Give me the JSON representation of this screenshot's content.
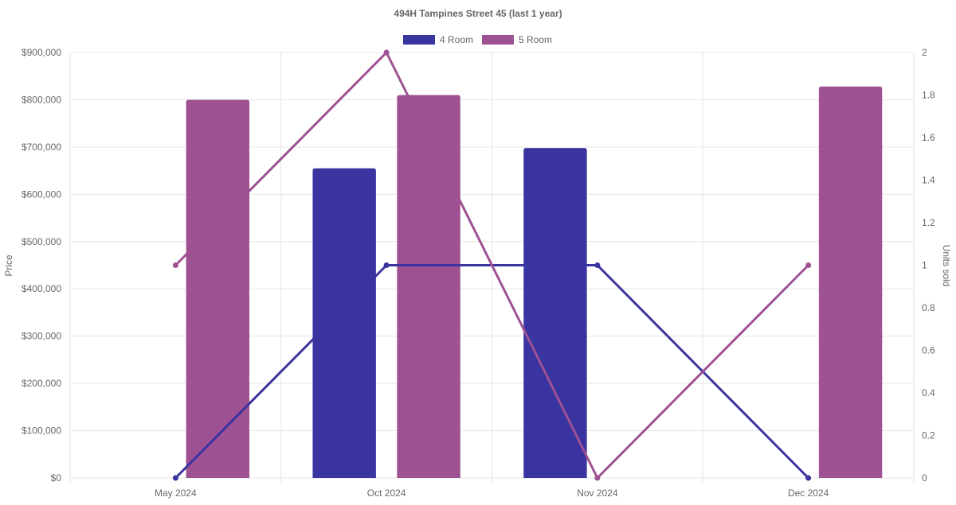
{
  "chart_data": {
    "type": "bar",
    "title": "494H Tampines Street 45 (last 1 year)",
    "categories": [
      "May 2024",
      "Oct 2024",
      "Nov 2024",
      "Dec 2024"
    ],
    "ylabel": "Price",
    "y2label": "Units sold",
    "ylim": [
      0,
      900000
    ],
    "y2lim": [
      0,
      2
    ],
    "y_ticks": [
      "$0",
      "$100,000",
      "$200,000",
      "$300,000",
      "$400,000",
      "$500,000",
      "$600,000",
      "$700,000",
      "$800,000",
      "$900,000"
    ],
    "y2_ticks": [
      "0",
      "0.2",
      "0.4",
      "0.6",
      "0.8",
      "1",
      "1.2",
      "1.4",
      "1.6",
      "1.8",
      "2"
    ],
    "grid": true,
    "legend_position": "top",
    "series": [
      {
        "name": "4 Room",
        "color": "#3a34a0",
        "values": [
          null,
          655000,
          698000,
          null
        ],
        "units": [
          0,
          1,
          1,
          0
        ]
      },
      {
        "name": "5 Room",
        "color": "#9e5193",
        "values": [
          800000,
          810000,
          null,
          828000
        ],
        "units": [
          1,
          2,
          0,
          1
        ]
      }
    ]
  }
}
